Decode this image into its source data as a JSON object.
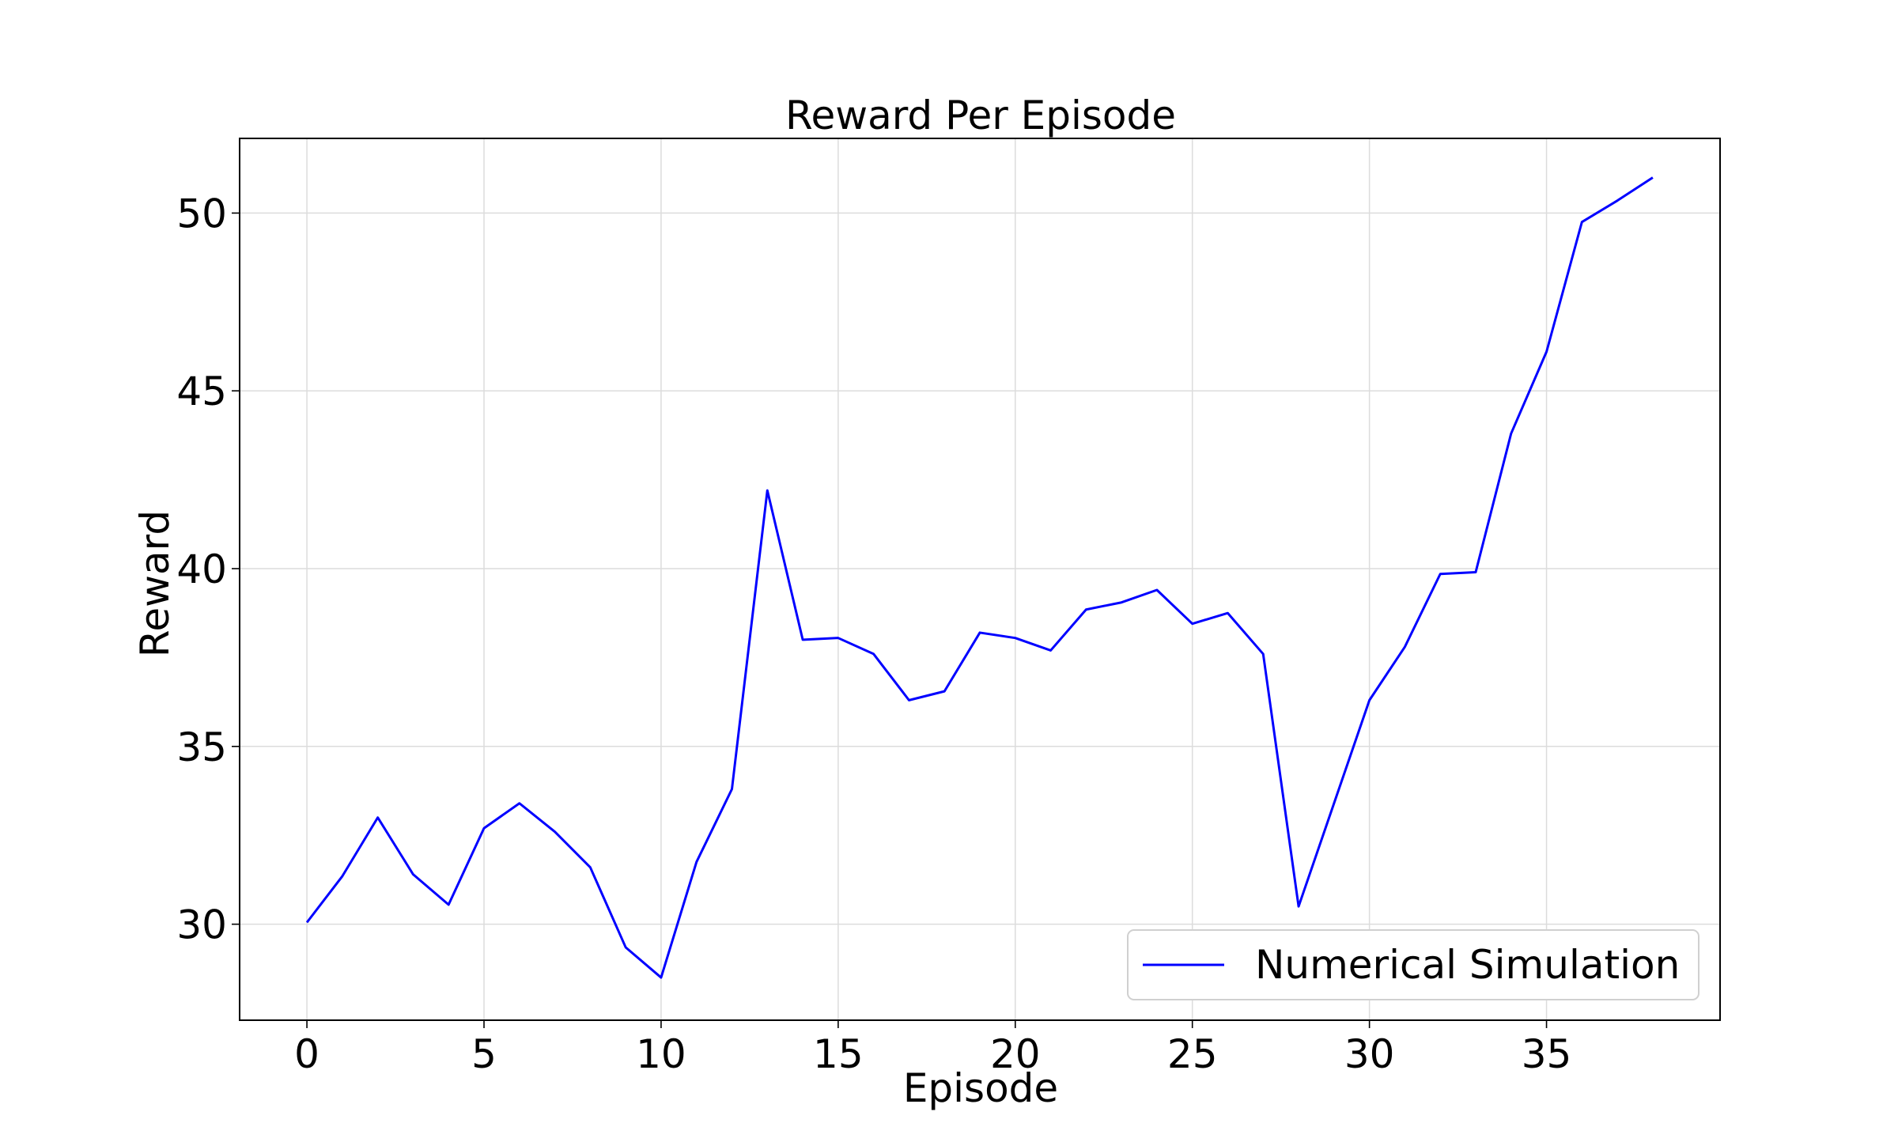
{
  "chart_data": {
    "type": "line",
    "title": "Reward Per Episode",
    "xlabel": "Episode",
    "ylabel": "Reward",
    "xlim": [
      -1.9,
      39.9
    ],
    "ylim": [
      27.3,
      52.1
    ],
    "xticks": [
      0,
      5,
      10,
      15,
      20,
      25,
      30,
      35
    ],
    "yticks": [
      30,
      35,
      40,
      45,
      50
    ],
    "grid": true,
    "legend_position": "lower right",
    "series": [
      {
        "name": "Numerical Simulation",
        "color": "#0000ff",
        "x": [
          0,
          1,
          2,
          3,
          4,
          5,
          6,
          7,
          8,
          9,
          10,
          11,
          12,
          13,
          14,
          15,
          16,
          17,
          18,
          19,
          20,
          21,
          22,
          23,
          24,
          25,
          26,
          27,
          28,
          29,
          30,
          31,
          32,
          33,
          34,
          35,
          36,
          37,
          38
        ],
        "values": [
          30.05,
          31.35,
          33.0,
          31.4,
          30.55,
          32.7,
          33.4,
          32.6,
          31.6,
          29.35,
          28.5,
          31.75,
          33.8,
          42.2,
          38.0,
          38.05,
          37.6,
          36.3,
          36.55,
          38.2,
          38.05,
          37.7,
          38.85,
          39.05,
          39.4,
          38.45,
          38.75,
          37.6,
          30.5,
          33.4,
          36.3,
          37.8,
          39.85,
          39.9,
          43.8,
          46.1,
          49.75,
          50.35,
          51.0
        ]
      }
    ]
  }
}
